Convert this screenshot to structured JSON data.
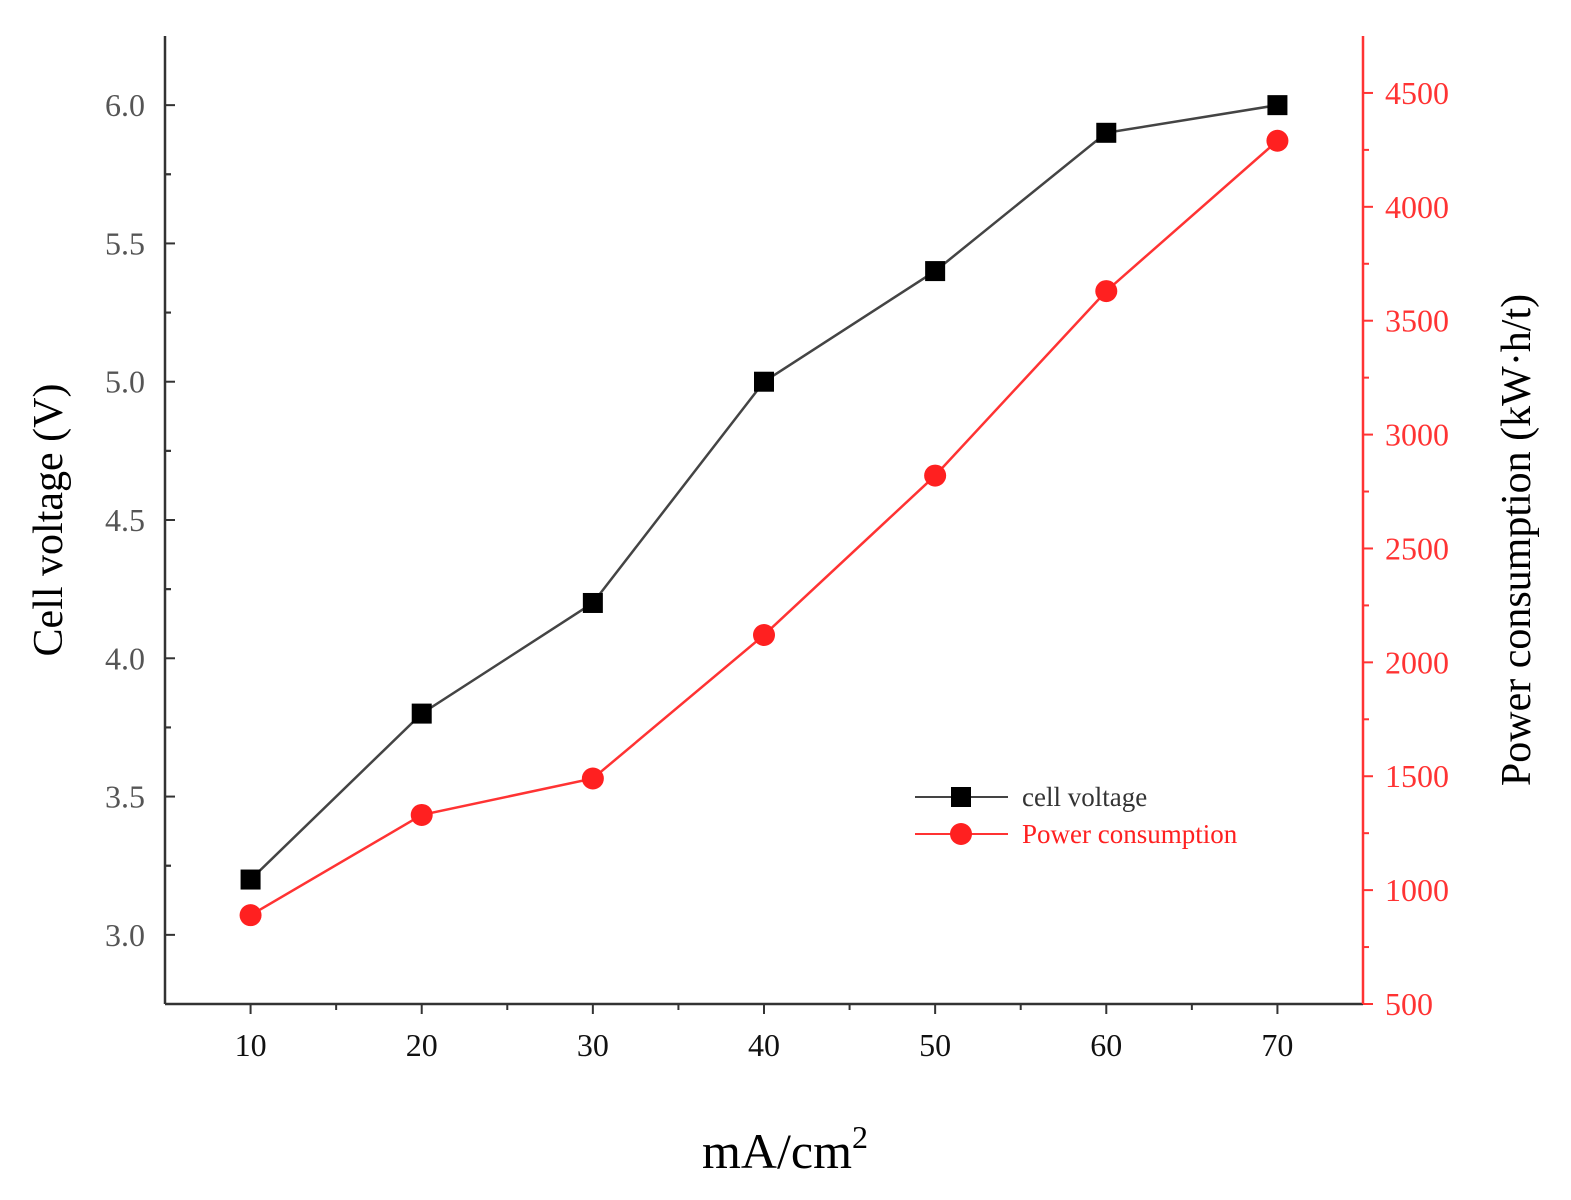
{
  "chart_data": {
    "type": "line",
    "title": "",
    "xlabel": "mA/cm",
    "xlabel_superscript": "2",
    "ylabel_left": "Cell voltage (V)",
    "ylabel_right": "Power consumption (kW·h/t)",
    "x": [
      10,
      20,
      30,
      40,
      50,
      60,
      70
    ],
    "xlim": [
      5,
      75
    ],
    "ylim_left": [
      2.75,
      6.25
    ],
    "ylim_right": [
      500,
      4750
    ],
    "x_ticks": [
      "10",
      "20",
      "30",
      "40",
      "50",
      "60",
      "70"
    ],
    "y_left_ticks": [
      "3.0",
      "3.5",
      "4.0",
      "4.5",
      "5.0",
      "5.5",
      "6.0"
    ],
    "y_right_ticks": [
      "500",
      "1000",
      "1500",
      "2000",
      "2500",
      "3000",
      "3500",
      "4000",
      "4500"
    ],
    "series": [
      {
        "name": "cell voltage",
        "axis": "left",
        "marker": "square",
        "color": "#000000",
        "line_color": "#444444",
        "values": [
          3.2,
          3.8,
          4.2,
          5.0,
          5.4,
          5.9,
          6.0
        ]
      },
      {
        "name": "Power consumption",
        "axis": "right",
        "marker": "circle",
        "color": "#ff2020",
        "line_color": "#ff3333",
        "values": [
          890,
          1330,
          1490,
          2120,
          2820,
          3630,
          4290
        ]
      }
    ],
    "legend_position": "bottom-right",
    "grid": false,
    "colors": {
      "left_axis_text": "#555555",
      "right_axis": "#ff3333",
      "axis": "#333333"
    }
  }
}
